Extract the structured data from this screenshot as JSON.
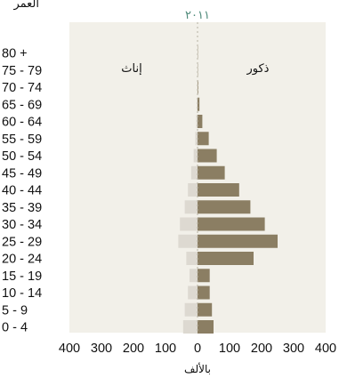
{
  "chart_data": {
    "type": "bar",
    "subtype": "population-pyramid",
    "title": "٢٠١١",
    "ylabel": "العمر",
    "xlabel": "بالألف",
    "xlim": [
      -400,
      400
    ],
    "x_ticks": [
      "400",
      "300",
      "200",
      "100",
      "0",
      "100",
      "200",
      "300",
      "400"
    ],
    "grid": false,
    "plot_background": "#f2f0e9",
    "categories": [
      "0 - 4",
      "5 - 9",
      "10 - 14",
      "15 - 19",
      "20 - 24",
      "25 - 29",
      "30 - 34",
      "35 - 39",
      "40 - 44",
      "45 - 49",
      "50 - 54",
      "55 - 59",
      "60 - 64",
      "65 - 69",
      "70 - 74",
      "75 - 79",
      "80 +"
    ],
    "series": [
      {
        "name": "إناث",
        "side": "left",
        "color": "#ddd9d1",
        "values": [
          45,
          40,
          30,
          25,
          35,
          60,
          55,
          40,
          30,
          20,
          12,
          7,
          4,
          2,
          1,
          0.5,
          0.5
        ]
      },
      {
        "name": "ذكور",
        "side": "right",
        "color": "#8b7e63",
        "values": [
          50,
          45,
          38,
          38,
          175,
          250,
          210,
          165,
          130,
          85,
          60,
          35,
          15,
          6,
          2,
          1,
          1
        ]
      }
    ]
  }
}
